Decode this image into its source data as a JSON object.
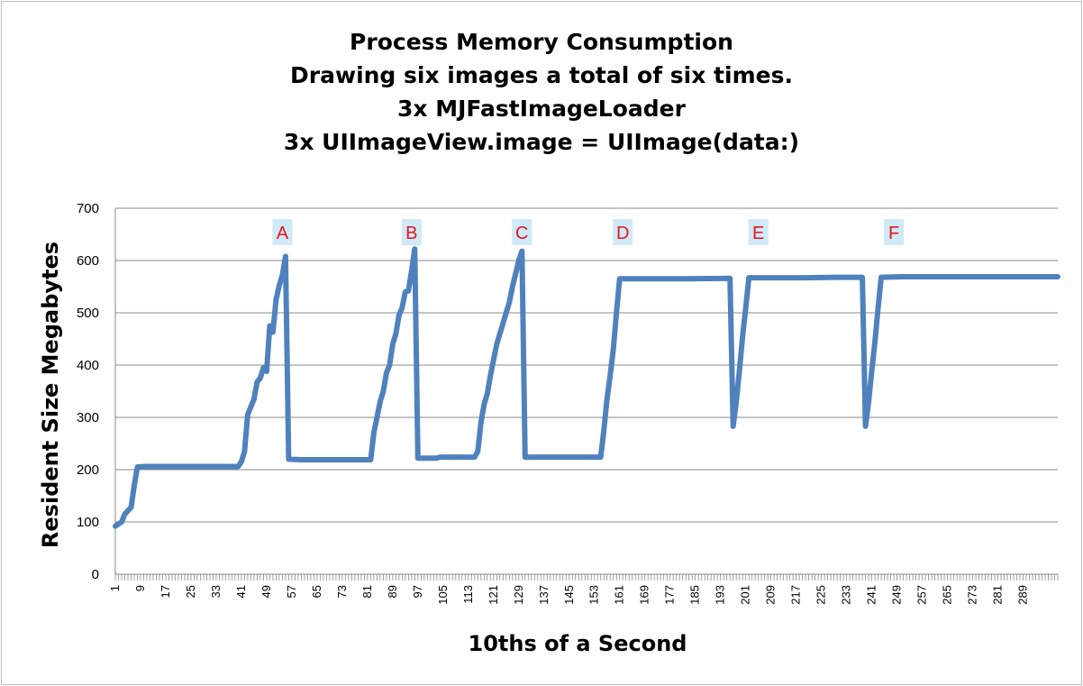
{
  "chart_data": {
    "type": "line",
    "title_lines": [
      "Process Memory Consumption",
      "Drawing six images a total of six times.",
      "3x MJFastImageLoader",
      "3x UIImageView.image = UIImage(data:)"
    ],
    "xlabel": "10ths of a Second",
    "ylabel": "Resident Size Megabytes",
    "ylim": [
      0,
      700
    ],
    "yticks": [
      0,
      100,
      200,
      300,
      400,
      500,
      600,
      700
    ],
    "xlim": [
      1,
      300
    ],
    "xtick_labels": [
      "1",
      "9",
      "17",
      "25",
      "33",
      "41",
      "49",
      "57",
      "65",
      "73",
      "81",
      "89",
      "97",
      "105",
      "113",
      "121",
      "129",
      "137",
      "145",
      "153",
      "161",
      "169",
      "177",
      "185",
      "193",
      "201",
      "209",
      "217",
      "225",
      "233",
      "241",
      "249",
      "257",
      "265",
      "273",
      "281",
      "289"
    ],
    "grid": "horizontal",
    "series": [
      {
        "name": "Resident Size",
        "color": "#4f81bd",
        "points": [
          [
            1,
            92
          ],
          [
            3,
            100
          ],
          [
            4,
            115
          ],
          [
            6,
            128
          ],
          [
            7,
            170
          ],
          [
            8,
            205
          ],
          [
            10,
            206
          ],
          [
            20,
            206
          ],
          [
            30,
            206
          ],
          [
            40,
            206
          ],
          [
            41,
            215
          ],
          [
            42,
            235
          ],
          [
            43,
            305
          ],
          [
            44,
            320
          ],
          [
            45,
            335
          ],
          [
            46,
            368
          ],
          [
            47,
            375
          ],
          [
            48,
            395
          ],
          [
            49,
            388
          ],
          [
            50,
            475
          ],
          [
            51,
            463
          ],
          [
            52,
            525
          ],
          [
            53,
            552
          ],
          [
            54,
            572
          ],
          [
            55,
            608
          ],
          [
            56,
            220
          ],
          [
            60,
            219
          ],
          [
            70,
            219
          ],
          [
            82,
            219
          ],
          [
            83,
            270
          ],
          [
            84,
            300
          ],
          [
            85,
            330
          ],
          [
            86,
            350
          ],
          [
            87,
            385
          ],
          [
            88,
            400
          ],
          [
            89,
            440
          ],
          [
            90,
            460
          ],
          [
            91,
            495
          ],
          [
            92,
            510
          ],
          [
            93,
            540
          ],
          [
            94,
            542
          ],
          [
            95,
            580
          ],
          [
            96,
            622
          ],
          [
            97,
            222
          ],
          [
            100,
            222
          ],
          [
            103,
            222
          ],
          [
            104,
            224
          ],
          [
            110,
            224
          ],
          [
            115,
            224
          ],
          [
            116,
            235
          ],
          [
            117,
            290
          ],
          [
            118,
            325
          ],
          [
            119,
            345
          ],
          [
            120,
            380
          ],
          [
            121,
            410
          ],
          [
            122,
            440
          ],
          [
            123,
            460
          ],
          [
            124,
            480
          ],
          [
            125,
            500
          ],
          [
            126,
            520
          ],
          [
            127,
            550
          ],
          [
            128,
            575
          ],
          [
            129,
            600
          ],
          [
            130,
            618
          ],
          [
            131,
            224
          ],
          [
            140,
            224
          ],
          [
            150,
            224
          ],
          [
            155,
            224
          ],
          [
            156,
            275
          ],
          [
            157,
            335
          ],
          [
            158,
            380
          ],
          [
            159,
            430
          ],
          [
            160,
            500
          ],
          [
            161,
            565
          ],
          [
            170,
            565
          ],
          [
            180,
            565
          ],
          [
            196,
            566
          ],
          [
            197,
            283
          ],
          [
            198,
            330
          ],
          [
            199,
            390
          ],
          [
            200,
            455
          ],
          [
            201,
            510
          ],
          [
            202,
            567
          ],
          [
            210,
            567
          ],
          [
            220,
            567
          ],
          [
            230,
            568
          ],
          [
            238,
            568
          ],
          [
            239,
            283
          ],
          [
            240,
            330
          ],
          [
            241,
            390
          ],
          [
            242,
            445
          ],
          [
            243,
            510
          ],
          [
            244,
            568
          ],
          [
            250,
            569
          ],
          [
            260,
            569
          ],
          [
            270,
            569
          ],
          [
            280,
            569
          ],
          [
            290,
            569
          ],
          [
            300,
            569
          ]
        ]
      }
    ],
    "annotations": [
      {
        "label": "A",
        "x": 54
      },
      {
        "label": "B",
        "x": 95
      },
      {
        "label": "C",
        "x": 130
      },
      {
        "label": "D",
        "x": 162
      },
      {
        "label": "E",
        "x": 205
      },
      {
        "label": "F",
        "x": 248
      }
    ]
  }
}
